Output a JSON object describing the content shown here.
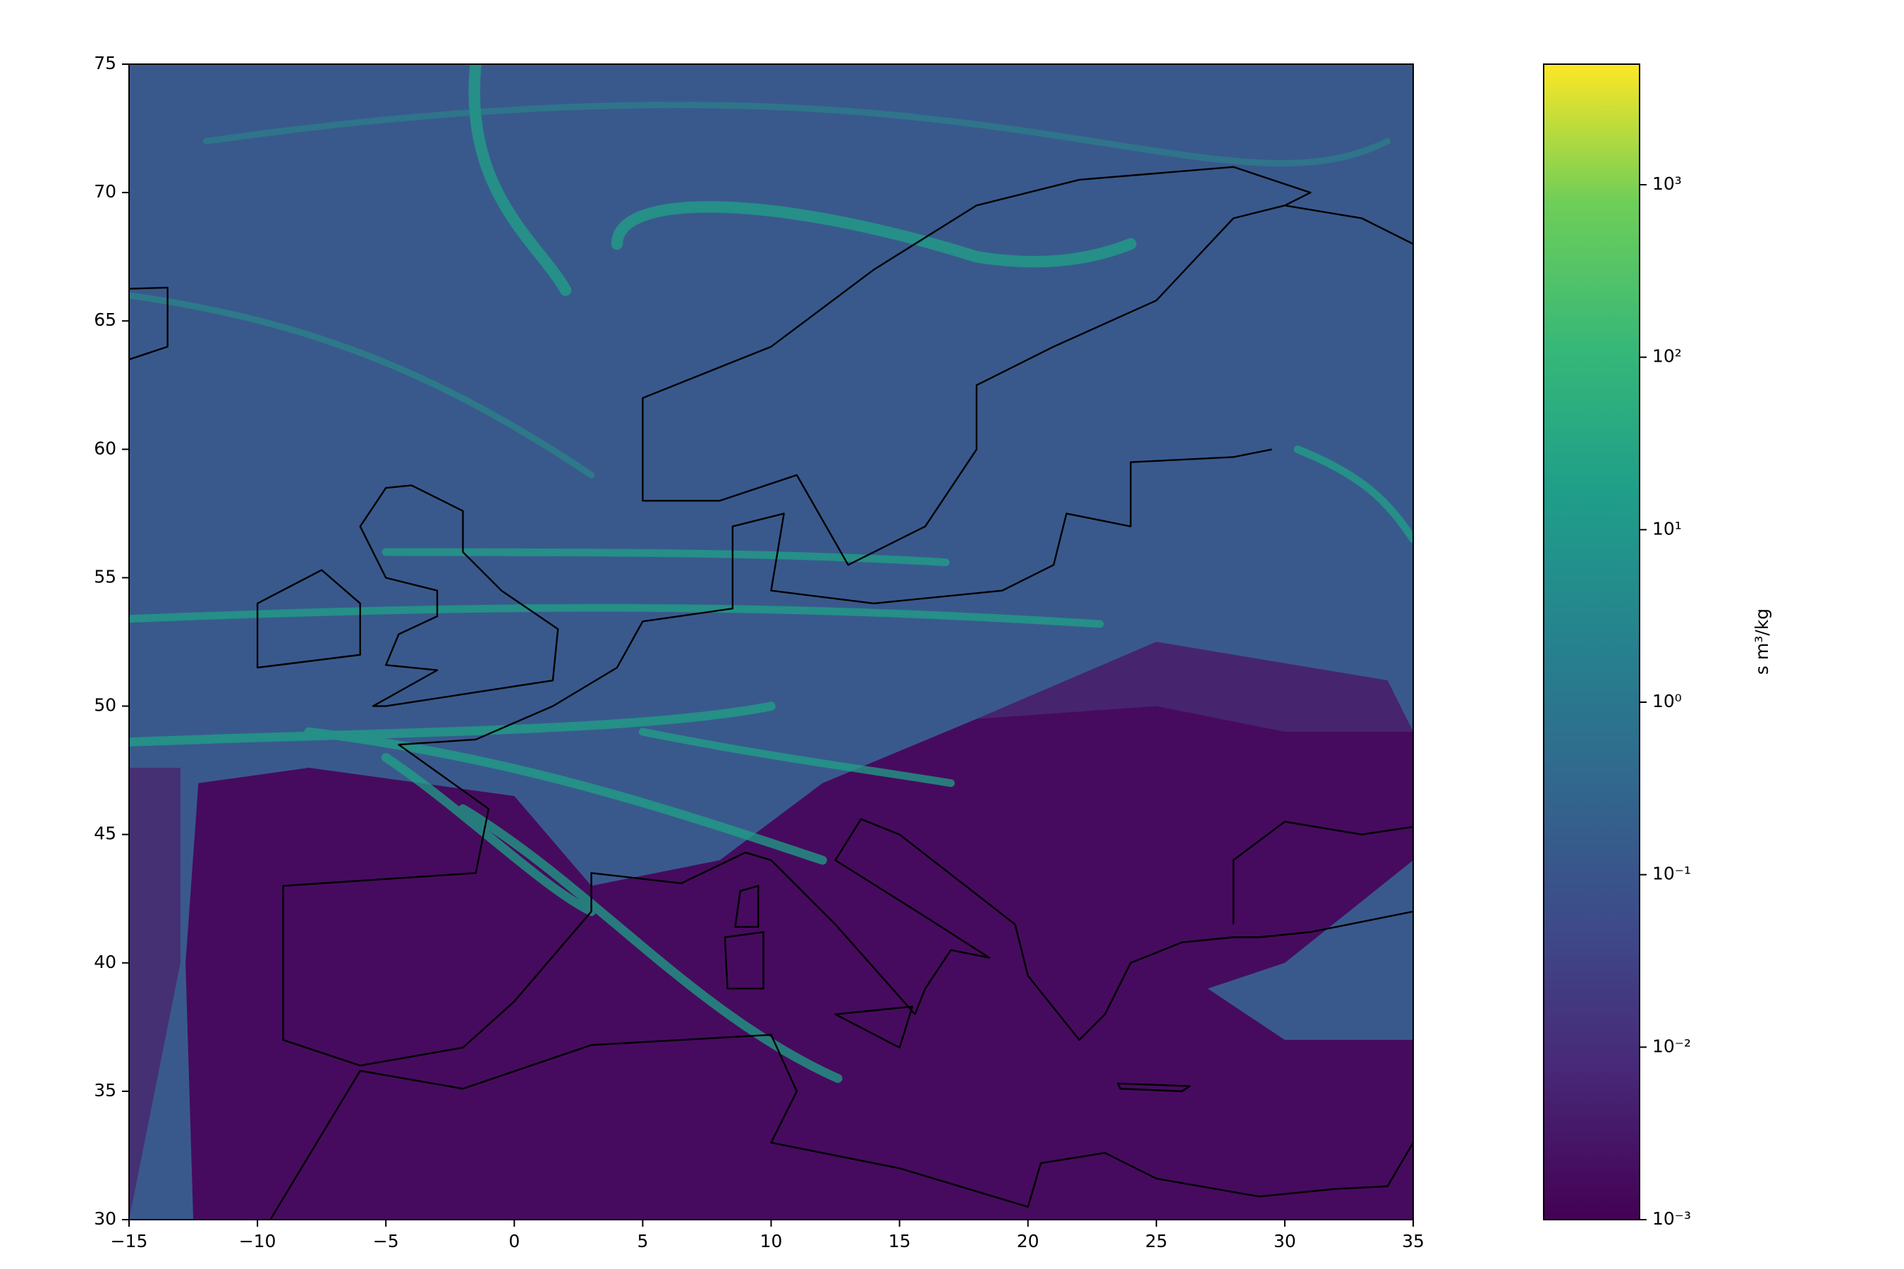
{
  "chart_data": {
    "type": "heatmap",
    "xlim": [
      -15,
      35
    ],
    "ylim": [
      30,
      75
    ],
    "xticks": [
      {
        "value": -15,
        "label": "−15"
      },
      {
        "value": -10,
        "label": "−10"
      },
      {
        "value": -5,
        "label": "−5"
      },
      0,
      5,
      10,
      15,
      20,
      25,
      30,
      35
    ],
    "yticks": [
      30,
      35,
      40,
      45,
      50,
      55,
      60,
      65,
      70,
      75
    ],
    "colorbar": {
      "label": "s m³/kg",
      "scale": "log",
      "lim": [
        0.001,
        5000
      ],
      "ticks": [
        {
          "value": 0.001,
          "label": "10⁻³"
        },
        {
          "value": 0.01,
          "label": "10⁻²"
        },
        {
          "value": 0.1,
          "label": "10⁻¹"
        },
        {
          "value": 1,
          "label": "10⁰"
        },
        {
          "value": 10,
          "label": "10¹"
        },
        {
          "value": 100,
          "label": "10²"
        },
        {
          "value": 1000,
          "label": "10³"
        }
      ]
    }
  }
}
